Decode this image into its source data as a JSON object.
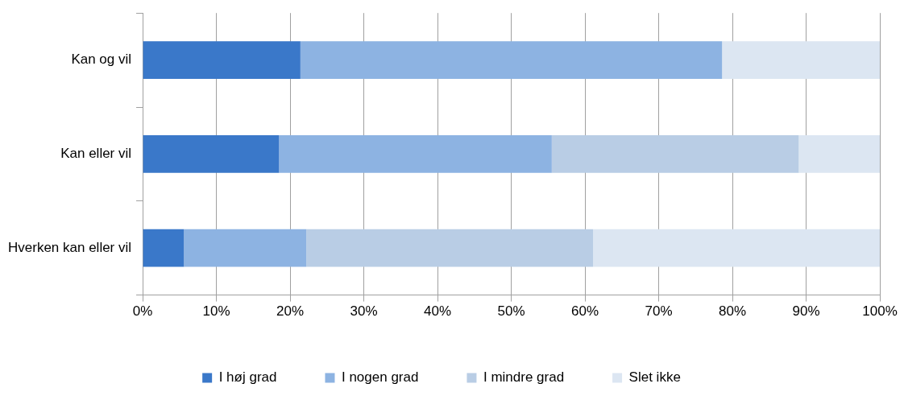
{
  "chart_data": {
    "type": "bar",
    "orientation": "horizontal",
    "stacked": true,
    "categories": [
      "Kan og vil",
      "Kan eller vil",
      "Hverken kan eller vil"
    ],
    "series": [
      {
        "name": "I høj grad",
        "color": "#3a78c9",
        "values": [
          21.4,
          18.5,
          5.6
        ]
      },
      {
        "name": "I nogen grad",
        "color": "#8db3e2",
        "values": [
          57.2,
          37.0,
          16.6
        ]
      },
      {
        "name": "I mindre grad",
        "color": "#b9cde5",
        "values": [
          0,
          33.5,
          38.9
        ]
      },
      {
        "name": "Slet ikke",
        "color": "#dce6f2",
        "values": [
          21.4,
          11.0,
          38.9
        ]
      }
    ],
    "xlim": [
      0,
      100
    ],
    "xticks": [
      {
        "value": 0,
        "label": "0%"
      },
      {
        "value": 10,
        "label": "10%"
      },
      {
        "value": 20,
        "label": "20%"
      },
      {
        "value": 30,
        "label": "30%"
      },
      {
        "value": 40,
        "label": "40%"
      },
      {
        "value": 50,
        "label": "50%"
      },
      {
        "value": 60,
        "label": "60%"
      },
      {
        "value": 70,
        "label": "70%"
      },
      {
        "value": 80,
        "label": "80%"
      },
      {
        "value": 90,
        "label": "90%"
      },
      {
        "value": 100,
        "label": "100%"
      }
    ],
    "grid": "x",
    "legend": "bottom"
  }
}
